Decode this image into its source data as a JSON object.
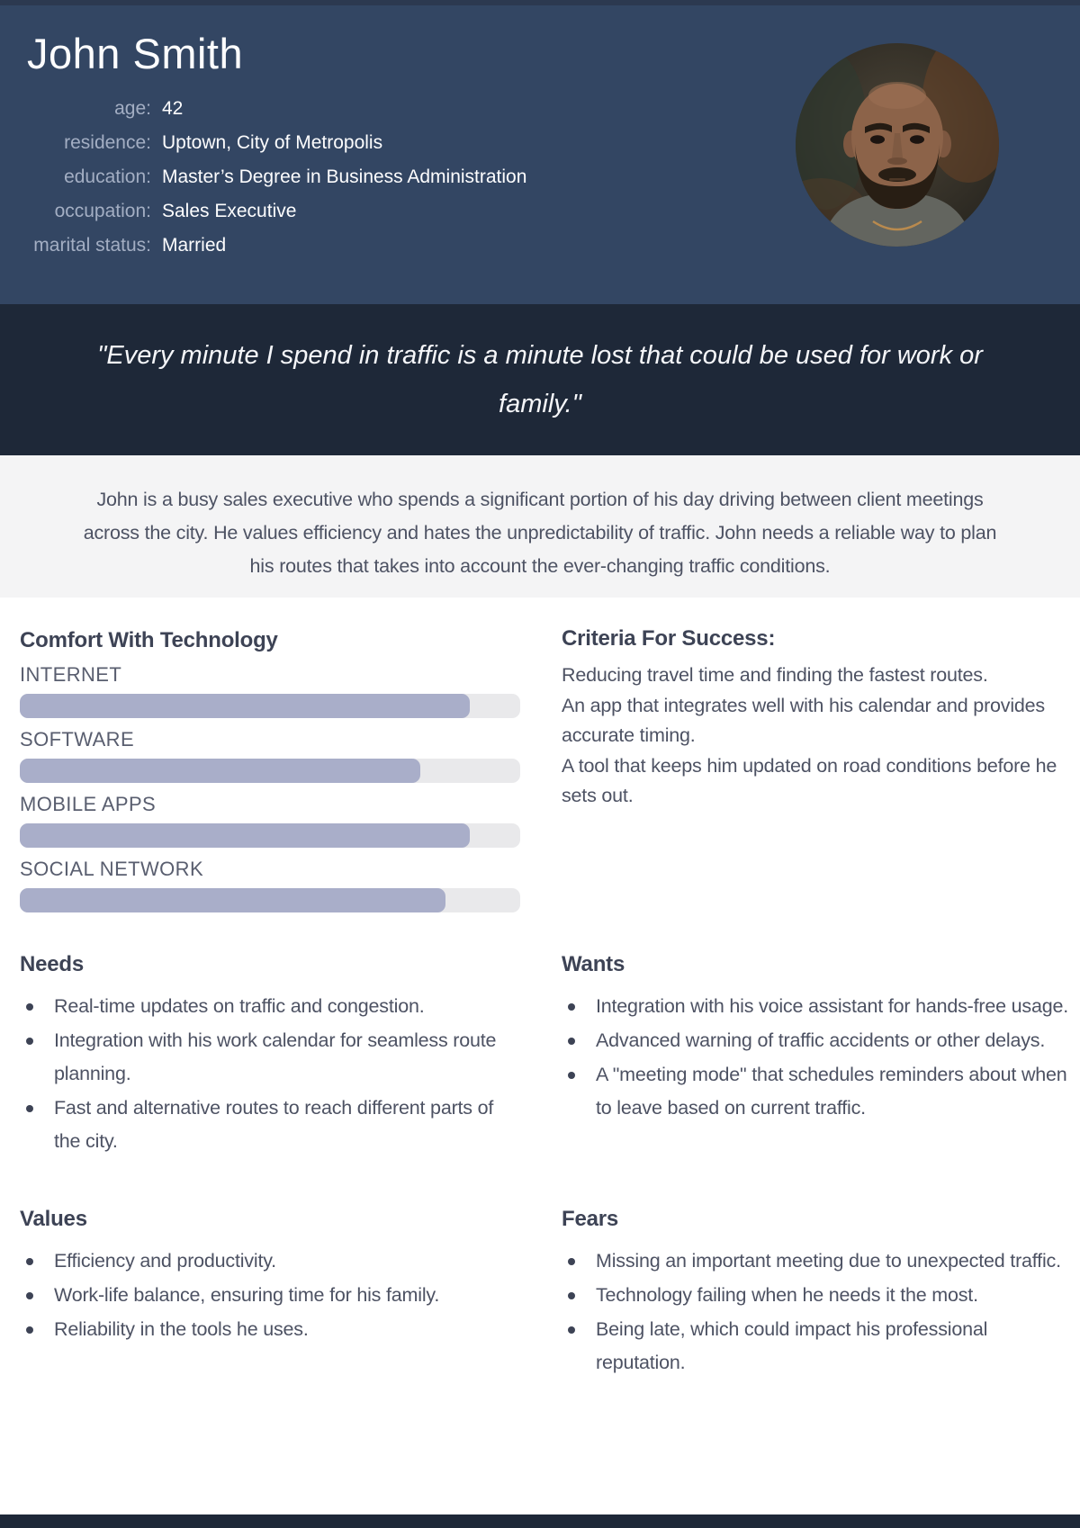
{
  "persona": {
    "name": "John Smith",
    "attributes": [
      {
        "label": "age:",
        "value": "42"
      },
      {
        "label": "residence:",
        "value": "Uptown, City of Metropolis"
      },
      {
        "label": "education:",
        "value": "Master’s Degree in Business Administration"
      },
      {
        "label": "occupation:",
        "value": "Sales Executive"
      },
      {
        "label": "marital status:",
        "value": "Married"
      }
    ],
    "photo": "portrait of bald bearded man"
  },
  "quote": {
    "lines": [
      "\"Every minute I spend in traffic is a minute lost that could be used for work or",
      "family.\""
    ]
  },
  "description": {
    "lines": [
      "John is a busy sales executive who spends a significant portion of his day driving between client meetings",
      "across the city. He values efficiency and hates the unpredictability of traffic. John needs a reliable way to plan",
      "his routes that takes into account the ever-changing traffic conditions."
    ]
  },
  "tech": {
    "heading": "Comfort With Technology",
    "bars": [
      {
        "label": "INTERNET",
        "percent": 90
      },
      {
        "label": "SOFTWARE",
        "percent": 80
      },
      {
        "label": "MOBILE APPS",
        "percent": 90
      },
      {
        "label": "SOCIAL NETWORK",
        "percent": 85
      }
    ]
  },
  "criteria": {
    "heading": "Criteria For Success:",
    "lines": [
      "Reducing travel time and finding the fastest routes.",
      "An app that integrates well with his calendar and provides accurate timing.",
      "A tool that keeps him updated on road conditions before he sets out."
    ]
  },
  "needs": {
    "heading": "Needs",
    "items": [
      "Real-time updates on traffic and congestion.",
      "Integration with his work calendar for seamless route planning.",
      "Fast and alternative routes to reach different parts of the city."
    ]
  },
  "wants": {
    "heading": "Wants",
    "items": [
      "Integration with his voice assistant for hands-free usage.",
      "Advanced warning of traffic accidents or other delays.",
      "A \"meeting mode\" that schedules reminders about when to leave based on current traffic."
    ]
  },
  "values": {
    "heading": "Values",
    "items": [
      "Efficiency and productivity.",
      "Work-life balance, ensuring time for his family.",
      "Reliability in the tools he uses."
    ]
  },
  "fears": {
    "heading": "Fears",
    "items": [
      "Missing an important meeting due to unexpected traffic.",
      "Technology failing when he needs it the most.",
      "Being late, which could impact his professional reputation."
    ]
  },
  "colors": {
    "header_bg": "#334663",
    "top_strip_bg": "#2c3950",
    "quote_bg": "#1e2838",
    "description_bg": "#f4f4f5",
    "bar_fill": "#a9aec9",
    "bar_track": "#e9e9eb",
    "footer_bg": "#1e2838"
  }
}
